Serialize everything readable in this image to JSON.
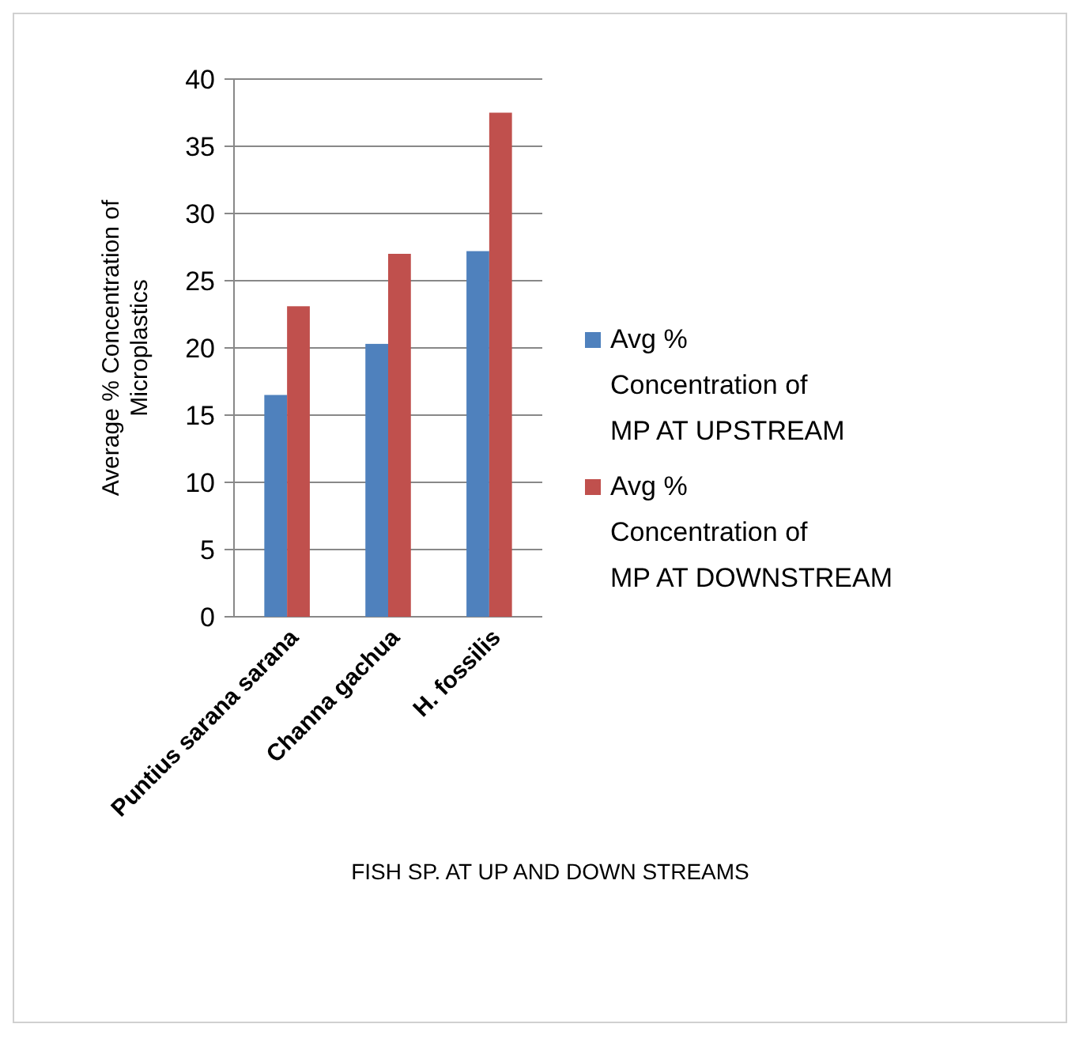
{
  "chart_data": {
    "type": "bar",
    "xlabel": "FISH SP. AT UP AND DOWN STREAMS",
    "ylabel": "Average % Concentration of Microplastics",
    "categories": [
      "Puntius sarana sarana",
      "Channa gachua",
      "H. fossilis"
    ],
    "series": [
      {
        "name": "Avg % Concentration of MP AT UPSTREAM",
        "color": "#4f81bd",
        "values": [
          16.5,
          20.3,
          27.2
        ]
      },
      {
        "name": "Avg % Concentration of MP AT DOWNSTREAM",
        "color": "#c0504d",
        "values": [
          23.1,
          27.0,
          37.5
        ]
      }
    ],
    "ylim": [
      0,
      40
    ],
    "yticks": [
      0,
      5,
      10,
      15,
      20,
      25,
      30,
      35,
      40
    ],
    "grid": "y",
    "legend": "right"
  }
}
